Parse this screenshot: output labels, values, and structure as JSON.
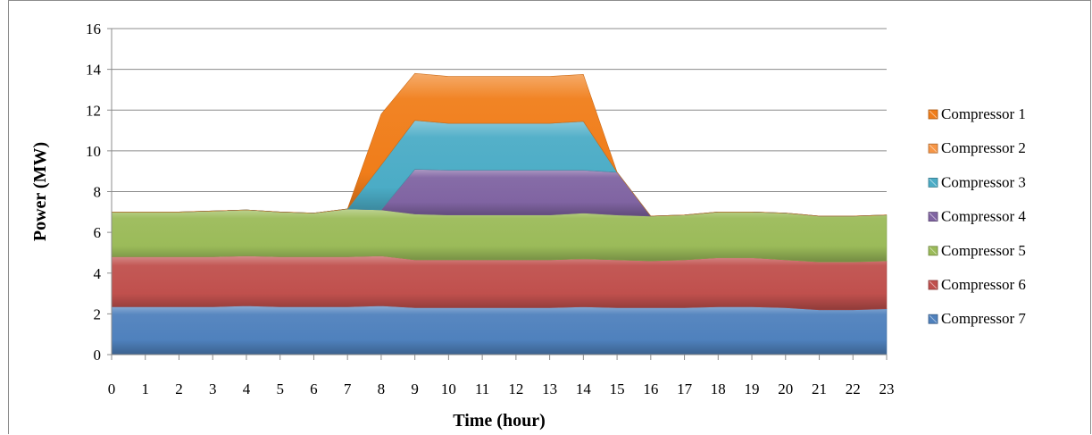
{
  "chart_data": {
    "type": "area",
    "stacked": true,
    "title": "",
    "xlabel": "Time (hour)",
    "ylabel": "Power (MW)",
    "xlim": [
      0,
      23
    ],
    "ylim": [
      0,
      16
    ],
    "yticks": [
      0,
      2,
      4,
      6,
      8,
      10,
      12,
      14,
      16
    ],
    "x": [
      0,
      1,
      2,
      3,
      4,
      5,
      6,
      7,
      8,
      9,
      10,
      11,
      12,
      13,
      14,
      15,
      16,
      17,
      18,
      19,
      20,
      21,
      22,
      23
    ],
    "grid": "horizontal",
    "legend_position": "right",
    "series": [
      {
        "name": "Compressor 7",
        "color": "#4f81bd",
        "values": [
          2.35,
          2.35,
          2.35,
          2.35,
          2.4,
          2.35,
          2.35,
          2.35,
          2.4,
          2.3,
          2.3,
          2.3,
          2.3,
          2.3,
          2.35,
          2.3,
          2.3,
          2.3,
          2.35,
          2.35,
          2.3,
          2.2,
          2.2,
          2.25
        ]
      },
      {
        "name": "Compressor 6",
        "color": "#c0504d",
        "values": [
          2.45,
          2.45,
          2.45,
          2.45,
          2.45,
          2.45,
          2.45,
          2.45,
          2.45,
          2.35,
          2.35,
          2.35,
          2.35,
          2.35,
          2.35,
          2.35,
          2.3,
          2.35,
          2.4,
          2.4,
          2.35,
          2.35,
          2.35,
          2.35
        ]
      },
      {
        "name": "Compressor 5",
        "color": "#9bbb59",
        "values": [
          2.2,
          2.2,
          2.2,
          2.25,
          2.25,
          2.2,
          2.15,
          2.35,
          2.25,
          2.25,
          2.2,
          2.2,
          2.2,
          2.2,
          2.25,
          2.2,
          2.2,
          2.2,
          2.25,
          2.25,
          2.3,
          2.25,
          2.25,
          2.25
        ]
      },
      {
        "name": "Compressor 4",
        "color": "#8064a2",
        "values": [
          0,
          0,
          0,
          0,
          0,
          0,
          0,
          0,
          0,
          2.2,
          2.2,
          2.2,
          2.2,
          2.2,
          2.1,
          2.1,
          0,
          0,
          0,
          0,
          0,
          0,
          0,
          0
        ]
      },
      {
        "name": "Compressor 3",
        "color": "#4bacc6",
        "values": [
          0,
          0,
          0,
          0,
          0,
          0,
          0,
          0,
          2.2,
          2.4,
          2.3,
          2.3,
          2.3,
          2.3,
          2.4,
          0,
          0,
          0,
          0,
          0,
          0,
          0,
          0,
          0
        ]
      },
      {
        "name": "Compressor 2",
        "color": "#f79646",
        "values": [
          0,
          0,
          0,
          0,
          0,
          0,
          0,
          0,
          0,
          0,
          0,
          0,
          0,
          0,
          0,
          0,
          0,
          0,
          0,
          0,
          0,
          0,
          0,
          0
        ]
      },
      {
        "name": "Compressor 1",
        "color": "#f07d1a",
        "values": [
          0,
          0,
          0,
          0,
          0,
          0,
          0,
          0,
          2.5,
          2.3,
          2.3,
          2.3,
          2.3,
          2.3,
          2.3,
          0,
          0,
          0,
          0,
          0,
          0,
          0,
          0,
          0
        ]
      }
    ],
    "legend_order": [
      "Compressor 1",
      "Compressor 2",
      "Compressor 3",
      "Compressor 4",
      "Compressor 5",
      "Compressor 6",
      "Compressor 7"
    ]
  }
}
